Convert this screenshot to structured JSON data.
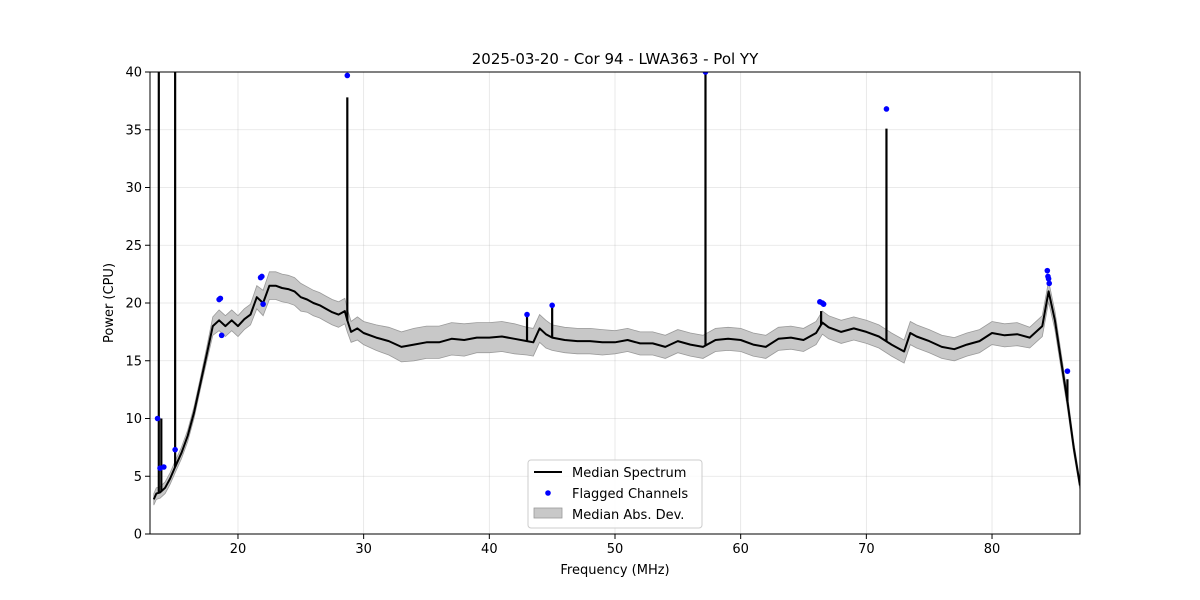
{
  "chart_data": {
    "type": "line",
    "title": "2025-03-20 - Cor 94 - LWA363 - Pol YY",
    "xlabel": "Frequency (MHz)",
    "ylabel": "Power (CPU)",
    "xlim": [
      13.0,
      87.0
    ],
    "ylim": [
      0,
      40
    ],
    "xticks": [
      20,
      30,
      40,
      50,
      60,
      70,
      80
    ],
    "yticks": [
      0,
      5,
      10,
      15,
      20,
      25,
      30,
      35,
      40
    ],
    "xtick_labels": [
      "20",
      "30",
      "40",
      "50",
      "60",
      "70",
      "80"
    ],
    "ytick_labels": [
      "0",
      "5",
      "10",
      "15",
      "20",
      "25",
      "30",
      "35",
      "40"
    ],
    "grid": true,
    "legend_position": "lower-center",
    "legend": [
      {
        "label": "Median Spectrum",
        "kind": "line",
        "color": "#000000"
      },
      {
        "label": "Flagged Channels",
        "kind": "marker",
        "color": "#0000ff"
      },
      {
        "label": "Median Abs. Dev.",
        "kind": "patch",
        "color": "#c8c8c8"
      }
    ],
    "colors": {
      "line": "#000000",
      "flag": "#0000ff",
      "band": "#c8c8c8",
      "band_edge": "#9a9a9a"
    },
    "series": [
      {
        "name": "Median Spectrum",
        "x": [
          13.3,
          13.5,
          13.8,
          14.2,
          14.6,
          15.0,
          15.5,
          16.0,
          16.5,
          17.0,
          17.5,
          18.0,
          18.5,
          19.0,
          19.5,
          20.0,
          20.5,
          21.0,
          21.5,
          22.0,
          22.5,
          23.0,
          23.5,
          24.0,
          24.5,
          25.0,
          25.5,
          26.0,
          26.5,
          27.0,
          27.5,
          28.0,
          28.5,
          28.7,
          29.0,
          29.5,
          30.0,
          31.0,
          32.0,
          33.0,
          34.0,
          35.0,
          36.0,
          37.0,
          38.0,
          39.0,
          40.0,
          41.0,
          42.0,
          43.0,
          43.5,
          44.0,
          44.5,
          45.0,
          46.0,
          47.0,
          48.0,
          49.0,
          50.0,
          51.0,
          52.0,
          53.0,
          54.0,
          55.0,
          56.0,
          57.0,
          58.0,
          59.0,
          60.0,
          61.0,
          62.0,
          63.0,
          64.0,
          65.0,
          66.0,
          66.5,
          67.0,
          68.0,
          69.0,
          70.0,
          71.0,
          72.0,
          73.0,
          73.5,
          74.0,
          75.0,
          76.0,
          77.0,
          78.0,
          79.0,
          80.0,
          81.0,
          82.0,
          83.0,
          84.0,
          84.5,
          85.0,
          85.5,
          86.0,
          86.5,
          87.0
        ],
        "y": [
          3.0,
          3.5,
          3.6,
          4.0,
          4.8,
          5.8,
          7.0,
          8.5,
          10.5,
          13.0,
          15.5,
          18.0,
          18.5,
          18.0,
          18.5,
          18.0,
          18.6,
          19.0,
          20.5,
          20.0,
          21.5,
          21.5,
          21.3,
          21.2,
          21.0,
          20.5,
          20.3,
          20.0,
          19.8,
          19.5,
          19.2,
          19.0,
          19.3,
          18.5,
          17.5,
          17.8,
          17.4,
          17.0,
          16.7,
          16.2,
          16.4,
          16.6,
          16.6,
          16.9,
          16.8,
          17.0,
          17.0,
          17.1,
          16.9,
          16.7,
          16.6,
          17.8,
          17.3,
          17.0,
          16.8,
          16.7,
          16.7,
          16.6,
          16.6,
          16.8,
          16.5,
          16.5,
          16.2,
          16.7,
          16.4,
          16.2,
          16.8,
          16.9,
          16.8,
          16.4,
          16.2,
          16.9,
          17.0,
          16.8,
          17.4,
          18.3,
          17.9,
          17.5,
          17.8,
          17.5,
          17.1,
          16.4,
          15.8,
          17.4,
          17.1,
          16.7,
          16.2,
          16.0,
          16.4,
          16.7,
          17.4,
          17.2,
          17.3,
          17.0,
          18.0,
          21.0,
          18.5,
          15.0,
          11.5,
          7.5,
          4.2
        ]
      }
    ],
    "spikes": [
      {
        "x": 13.7,
        "y": 40.0
      },
      {
        "x": 13.9,
        "y": 10.0
      },
      {
        "x": 15.0,
        "y": 40.0
      },
      {
        "x": 28.7,
        "y": 37.8
      },
      {
        "x": 43.0,
        "y": 19.0
      },
      {
        "x": 45.0,
        "y": 19.8
      },
      {
        "x": 57.2,
        "y": 40.0
      },
      {
        "x": 66.4,
        "y": 19.3
      },
      {
        "x": 71.6,
        "y": 35.1
      },
      {
        "x": 86.0,
        "y": 13.4
      }
    ],
    "mad": [
      0.5,
      0.5,
      0.5,
      0.5,
      0.5,
      0.5,
      0.5,
      0.5,
      0.5,
      0.5,
      0.6,
      0.8,
      0.9,
      0.9,
      0.9,
      0.9,
      0.9,
      0.9,
      1.0,
      1.1,
      1.2,
      1.2,
      1.2,
      1.2,
      1.2,
      1.2,
      1.1,
      1.1,
      1.1,
      1.1,
      1.1,
      1.1,
      1.1,
      1.0,
      0.9,
      1.0,
      1.0,
      1.1,
      1.2,
      1.3,
      1.4,
      1.4,
      1.4,
      1.4,
      1.4,
      1.3,
      1.3,
      1.3,
      1.3,
      1.2,
      1.2,
      1.2,
      1.2,
      1.1,
      1.1,
      1.1,
      1.1,
      1.1,
      1.0,
      1.0,
      1.0,
      1.0,
      1.0,
      1.0,
      1.0,
      1.0,
      1.0,
      1.0,
      1.0,
      1.0,
      1.0,
      1.0,
      1.0,
      1.0,
      1.0,
      1.0,
      1.0,
      1.0,
      1.0,
      1.0,
      1.0,
      1.0,
      1.0,
      1.0,
      1.0,
      1.0,
      1.0,
      1.0,
      1.0,
      1.0,
      1.0,
      1.0,
      1.0,
      0.9,
      0.9,
      0.9,
      0.8,
      0.7,
      0.6,
      0.5,
      0.4
    ],
    "flagged": {
      "x": [
        13.6,
        13.8,
        14.1,
        15.0,
        18.5,
        18.6,
        18.7,
        21.8,
        21.9,
        22.0,
        28.7,
        43.0,
        45.0,
        57.2,
        66.3,
        66.5,
        66.6,
        71.6,
        84.4,
        84.45,
        84.5,
        84.55,
        86.0
      ],
      "y": [
        10.0,
        5.7,
        5.8,
        7.3,
        20.3,
        20.4,
        17.2,
        22.2,
        22.3,
        19.9,
        39.7,
        19.0,
        19.8,
        40.0,
        20.1,
        20.0,
        19.9,
        36.8,
        22.8,
        22.3,
        22.1,
        21.7,
        14.1
      ]
    }
  }
}
